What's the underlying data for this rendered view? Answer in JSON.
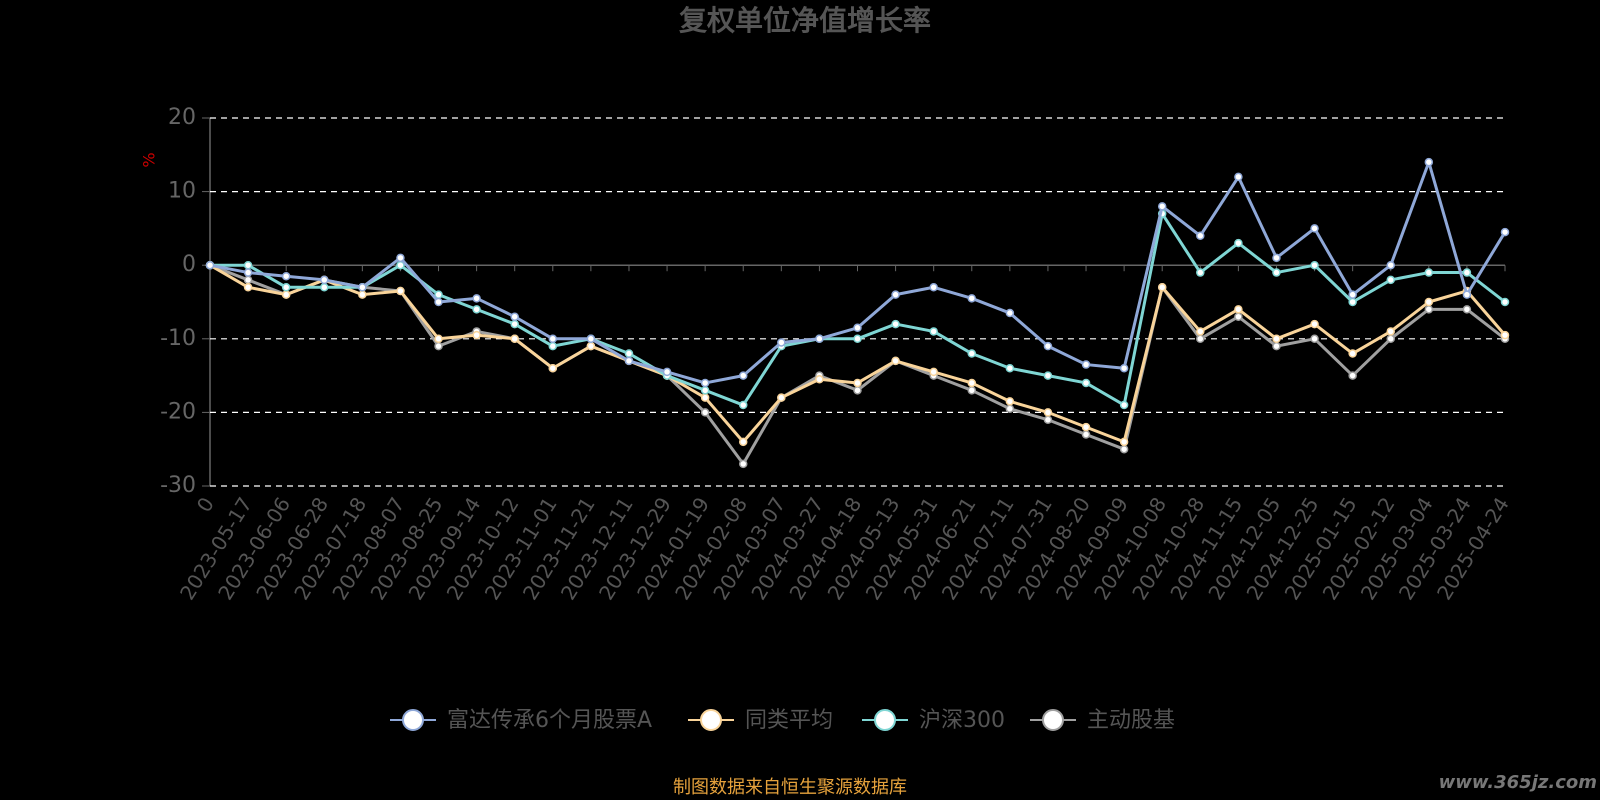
{
  "chart_data": {
    "type": "line",
    "title": "复权单位净值增长率",
    "y_label": "%",
    "source": "制图数据来自恒生聚源数据库",
    "watermark": "www.365jz.com",
    "categories": [
      "0",
      "2023-05-17",
      "2023-06-06",
      "2023-06-28",
      "2023-07-18",
      "2023-08-07",
      "2023-08-25",
      "2023-09-14",
      "2023-10-12",
      "2023-11-01",
      "2023-11-21",
      "2023-12-11",
      "2023-12-29",
      "2024-01-19",
      "2024-02-08",
      "2024-03-07",
      "2024-03-27",
      "2024-04-18",
      "2024-05-13",
      "2024-05-31",
      "2024-06-21",
      "2024-07-11",
      "2024-07-31",
      "2024-08-20",
      "2024-09-09",
      "2024-10-08",
      "2024-10-28",
      "2024-11-15",
      "2024-12-05",
      "2024-12-25",
      "2025-01-15",
      "2025-02-12",
      "2025-03-04",
      "2025-03-24",
      "2025-04-24"
    ],
    "series": [
      {
        "name": "富达传承6个月股票A",
        "color": "#8fa8d8",
        "values": [
          0,
          -1,
          -1.5,
          -2,
          -3,
          1,
          -5,
          -4.5,
          -7,
          -10,
          -10,
          -13,
          -14.5,
          -16,
          -15,
          -10.5,
          -10,
          -8.5,
          -4,
          -3,
          -4.5,
          -6.5,
          -11,
          -13.5,
          -14,
          8,
          4,
          12,
          1,
          5,
          -4,
          0,
          14,
          -4,
          4.5
        ]
      },
      {
        "name": "同类平均",
        "color": "#f9d49a",
        "values": [
          0,
          -3,
          -4,
          -2,
          -4,
          -3.5,
          -10,
          -9.5,
          -10,
          -14,
          -11,
          -13,
          -15,
          -18,
          -24,
          -18,
          -15.5,
          -16,
          -13,
          -14.5,
          -16,
          -18.5,
          -20,
          -22,
          -24,
          -3,
          -9,
          -6,
          -10,
          -8,
          -12,
          -9,
          -5,
          -3.5,
          -9.5
        ]
      },
      {
        "name": "沪深300",
        "color": "#7fd6d4",
        "values": [
          0,
          0,
          -3,
          -3,
          -3,
          0,
          -4,
          -6,
          -8,
          -11,
          -10,
          -12,
          -15,
          -17,
          -19,
          -11,
          -10,
          -10,
          -8,
          -9,
          -12,
          -14,
          -15,
          -16,
          -19,
          7,
          -1,
          3,
          -1,
          0,
          -5,
          -2,
          -1,
          -1,
          -5
        ]
      },
      {
        "name": "主动股基",
        "color": "#a0a0a0",
        "values": [
          0,
          -2,
          -4,
          -2,
          -3,
          -3.5,
          -11,
          -9,
          -10,
          -14,
          -11,
          -13,
          -15,
          -20,
          -27,
          -18,
          -15,
          -17,
          -13,
          -15,
          -17,
          -19.5,
          -21,
          -23,
          -25,
          -3,
          -10,
          -7,
          -11,
          -10,
          -15,
          -10,
          -6,
          -6,
          -10
        ]
      }
    ],
    "ylim": [
      -30,
      20
    ],
    "yticks": [
      -30,
      -20,
      -10,
      0,
      10,
      20
    ],
    "grid": true
  }
}
